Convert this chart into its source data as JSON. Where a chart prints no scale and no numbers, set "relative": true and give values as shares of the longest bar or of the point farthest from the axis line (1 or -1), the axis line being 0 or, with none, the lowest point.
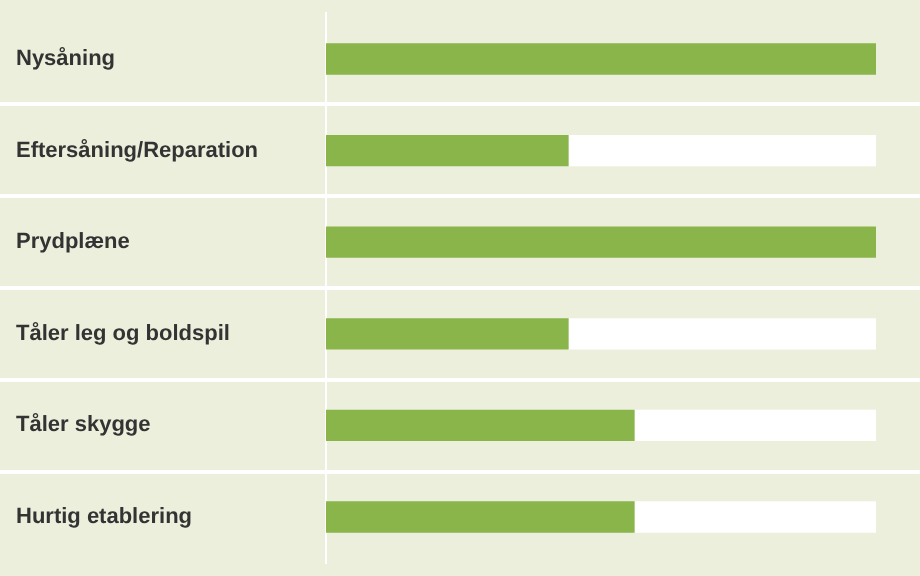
{
  "chart_data": {
    "type": "bar",
    "orientation": "horizontal",
    "relative": true,
    "stacked": true,
    "categories": [
      "Nysåning",
      "Eftersåning/Reparation",
      "Prydplæne",
      "Tåler leg og boldspil",
      "Tåler skygge",
      "Hurtig etablering"
    ],
    "series": [
      {
        "color": "#8ab54b",
        "values": [
          1,
          0.44,
          1,
          0.44,
          0.56,
          0.56
        ]
      },
      {
        "color": "#ffffff",
        "values": [
          0,
          0.56,
          0,
          0.56,
          0.44,
          0.44
        ]
      }
    ],
    "legend": false
  }
}
